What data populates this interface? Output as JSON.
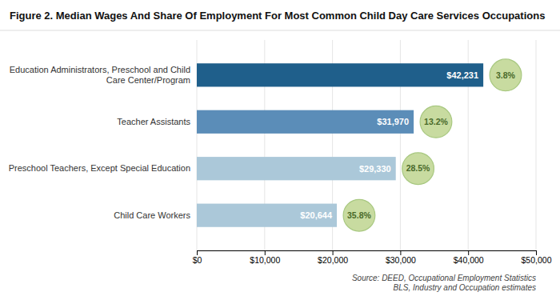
{
  "chart_data": {
    "type": "bar",
    "orientation": "horizontal",
    "title": "Figure 2. Median Wages And Share Of Employment For Most Common Child Day Care Services Occupations",
    "categories": [
      "Child Care Workers",
      "Preschool Teachers, Except Special Education",
      "Teacher Assistants",
      "Education Administrators, Preschool and Child\nCare Center/Program"
    ],
    "values": [
      20644,
      29330,
      31970,
      42231
    ],
    "value_labels": [
      "$20,644",
      "$29,330",
      "$31,970",
      "$42,231"
    ],
    "data_labels": true,
    "colors": [
      "#abc8d9",
      "#abc8d9",
      "#5b8db8",
      "#1f5f8b"
    ],
    "shares": [
      35.8,
      28.5,
      13.2,
      3.8
    ],
    "share_labels": [
      "35.8%",
      "28.5%",
      "13.2%",
      "3.8%"
    ],
    "xlim": [
      0,
      50000
    ],
    "xticks": [
      {
        "value": 0,
        "label": "$0"
      },
      {
        "value": 10000,
        "label": "$10,000"
      },
      {
        "value": 20000,
        "label": "$20,000"
      },
      {
        "value": 30000,
        "label": "$30,000"
      },
      {
        "value": 40000,
        "label": "$40,000"
      },
      {
        "value": 50000,
        "label": "$50,000"
      }
    ],
    "grid": true,
    "source": "Source: DEED, Occupational Employment Statistics\nBLS, Industry and Occupation estimates"
  }
}
